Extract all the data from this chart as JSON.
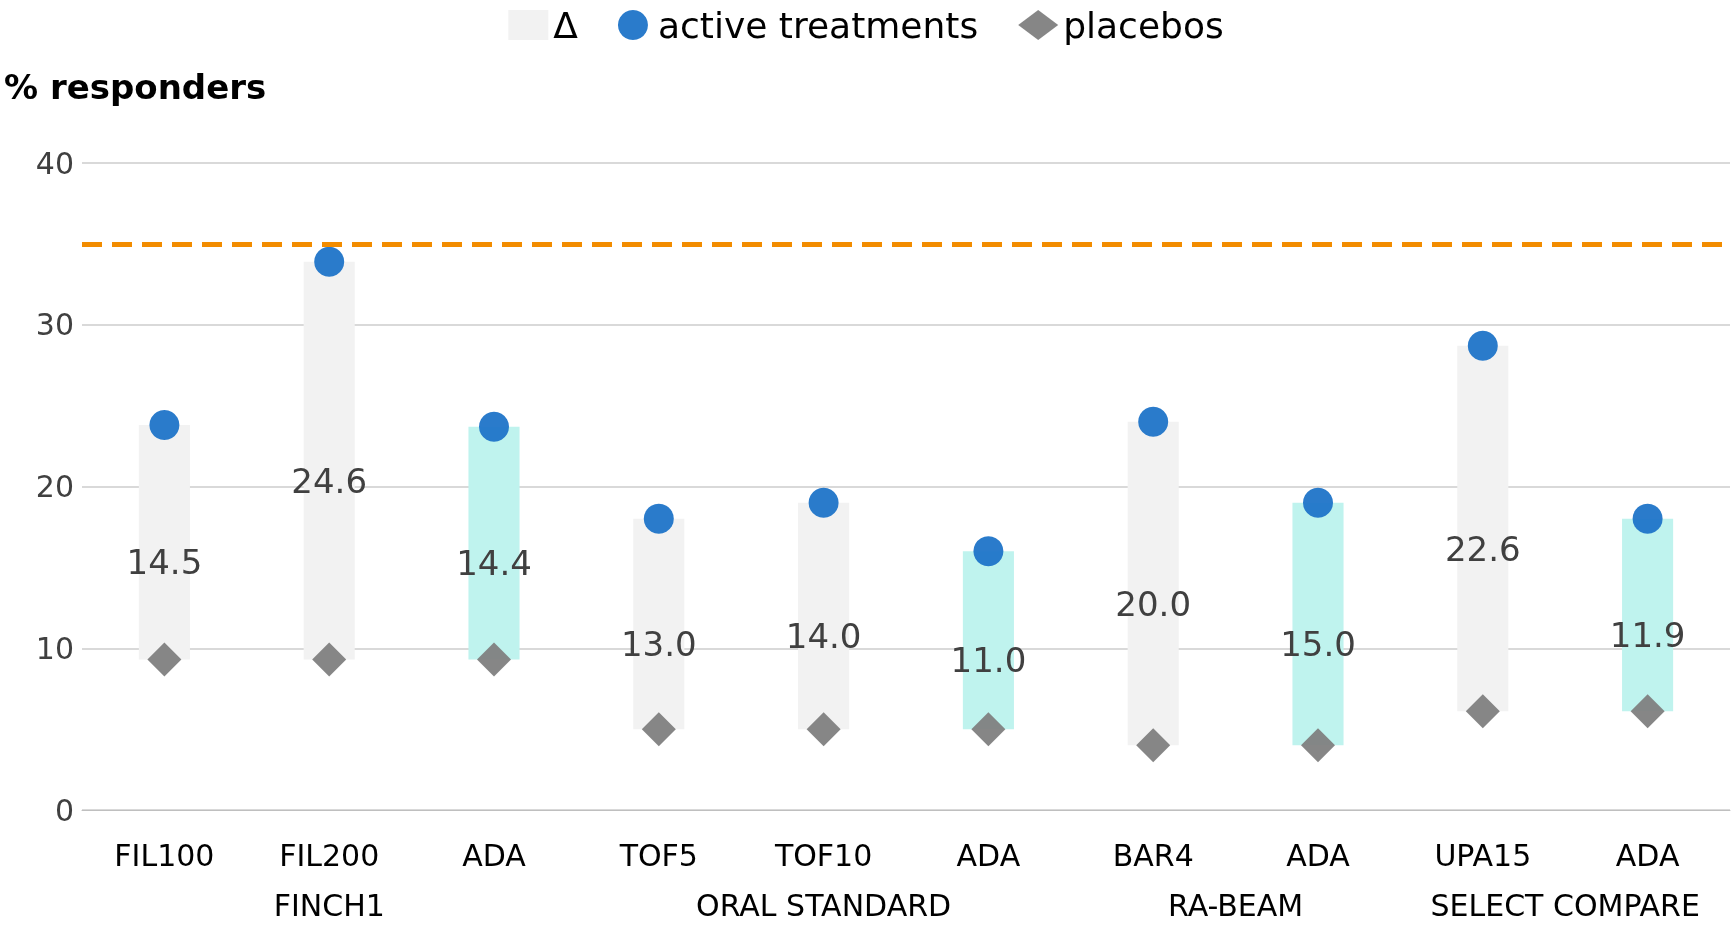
{
  "chart_data": {
    "type": "bar",
    "ylabel": "% responders",
    "categories": [
      "FIL100",
      "FIL200",
      "ADA",
      "TOF5",
      "TOF10",
      "ADA",
      "BAR4",
      "ADA",
      "UPA15",
      "ADA"
    ],
    "series": [
      {
        "name": "Δ",
        "base": [
          9.3,
          9.3,
          9.3,
          5,
          5,
          5,
          4,
          4,
          6.1,
          6.1
        ],
        "values": [
          14.5,
          24.6,
          14.4,
          13.0,
          14.0,
          11.0,
          20.0,
          15.0,
          22.6,
          11.9
        ],
        "value_labels": [
          "14.5",
          "24.6",
          "14.4",
          "13.0",
          "14.0",
          "11.0",
          "20.0",
          "15.0",
          "22.6",
          "11.9"
        ],
        "colors": [
          "#f2f2f2",
          "#f2f2f2",
          "#bff3ee",
          "#f2f2f2",
          "#f2f2f2",
          "#bff3ee",
          "#f2f2f2",
          "#bff3ee",
          "#f2f2f2",
          "#bff3ee"
        ]
      },
      {
        "name": "active treatments",
        "type": "scatter",
        "marker": "circle",
        "color": "#1f74c8",
        "values": [
          23.8,
          33.9,
          23.7,
          18.0,
          19.0,
          16.0,
          24.0,
          19.0,
          28.7,
          18.0
        ]
      },
      {
        "name": "placebos",
        "type": "scatter",
        "marker": "diamond",
        "color": "#7f7f7f",
        "values": [
          9.3,
          9.3,
          9.3,
          5,
          5,
          5,
          4,
          4,
          6.1,
          6.1
        ]
      }
    ],
    "ylim": [
      0,
      40
    ],
    "yticks": [
      0,
      10,
      20,
      30,
      40
    ],
    "grid": "y",
    "legend": "top",
    "ref_lines": [
      {
        "axis": "y",
        "value": 35,
        "color": "#f28c00",
        "line_style": "dashed"
      }
    ],
    "annotations": [
      "FINCH1",
      "ORAL STANDARD",
      "RA-BEAM",
      "SELECT COMPARE"
    ]
  }
}
